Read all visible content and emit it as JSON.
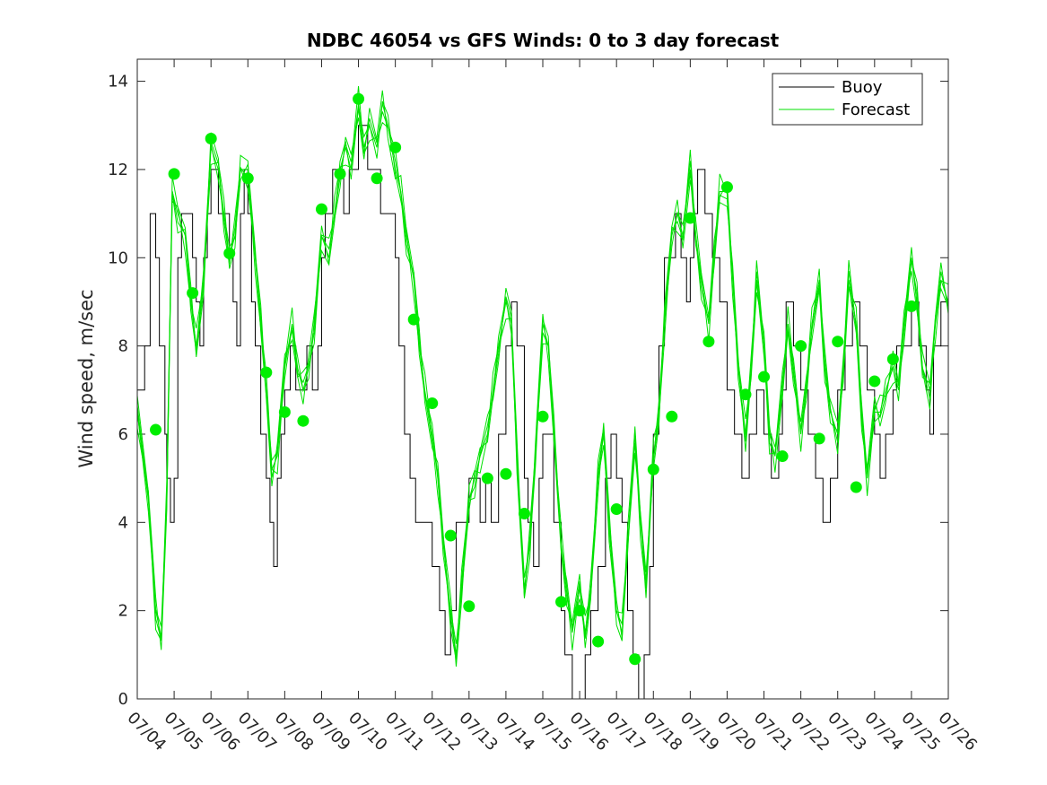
{
  "chart_data": {
    "type": "line",
    "title": "NDBC 46054 vs GFS Winds: 0 to 3 day forecast",
    "xlabel": "",
    "ylabel": "Wind speed, m/sec",
    "xlim": [
      "07/04",
      "07/26"
    ],
    "ylim": [
      0,
      14.5
    ],
    "x_ticks": [
      "07/04",
      "07/05",
      "07/06",
      "07/07",
      "07/08",
      "07/09",
      "07/10",
      "07/11",
      "07/12",
      "07/13",
      "07/14",
      "07/15",
      "07/16",
      "07/17",
      "07/18",
      "07/19",
      "07/20",
      "07/21",
      "07/22",
      "07/23",
      "07/24",
      "07/25",
      "07/26"
    ],
    "y_ticks": [
      "0",
      "2",
      "4",
      "6",
      "8",
      "10",
      "12",
      "14"
    ],
    "grid": false,
    "legend": {
      "position": "top-right",
      "entries": [
        {
          "label": "Buoy",
          "color": "#000000"
        },
        {
          "label": "Forecast",
          "color": "#00e000"
        }
      ]
    },
    "colors": {
      "buoy": "#000000",
      "forecast": "#00e000",
      "marker": "#00ee00"
    },
    "series": [
      {
        "name": "Buoy",
        "x": [
          0,
          0.2,
          0.35,
          0.5,
          0.6,
          0.75,
          0.8,
          0.9,
          1.0,
          1.1,
          1.2,
          1.35,
          1.5,
          1.6,
          1.7,
          1.8,
          1.9,
          2.0,
          2.1,
          2.2,
          2.35,
          2.5,
          2.6,
          2.7,
          2.8,
          2.9,
          3.0,
          3.1,
          3.2,
          3.35,
          3.5,
          3.6,
          3.7,
          3.8,
          3.9,
          4.0,
          4.15,
          4.3,
          4.45,
          4.6,
          4.75,
          4.9,
          5.0,
          5.1,
          5.3,
          5.5,
          5.6,
          5.75,
          5.9,
          6.0,
          6.1,
          6.25,
          6.4,
          6.6,
          6.75,
          6.9,
          7.0,
          7.1,
          7.25,
          7.4,
          7.55,
          7.7,
          7.9,
          8.0,
          8.2,
          8.35,
          8.5,
          8.65,
          8.8,
          9.0,
          9.15,
          9.3,
          9.45,
          9.6,
          9.8,
          10.0,
          10.15,
          10.3,
          10.5,
          10.6,
          10.75,
          10.9,
          11.0,
          11.15,
          11.3,
          11.5,
          11.6,
          11.8,
          12.0,
          12.15,
          12.3,
          12.5,
          12.6,
          12.7,
          12.85,
          13.0,
          13.15,
          13.3,
          13.45,
          13.6,
          13.75,
          13.9,
          14.0,
          14.15,
          14.3,
          14.5,
          14.6,
          14.75,
          14.9,
          15.0,
          15.1,
          15.2,
          15.4,
          15.6,
          15.8,
          16.0,
          16.2,
          16.4,
          16.6,
          16.8,
          17.0,
          17.2,
          17.4,
          17.5,
          17.6,
          17.8,
          18.0,
          18.2,
          18.4,
          18.5,
          18.6,
          18.8,
          19.0,
          19.2,
          19.4,
          19.5,
          19.6,
          19.8,
          20.0,
          20.15,
          20.3,
          20.5,
          20.6,
          20.8,
          21.0,
          21.2,
          21.4,
          21.5,
          21.6,
          21.8,
          22.0
        ],
        "y": [
          7,
          8,
          11,
          10,
          8,
          6,
          5,
          4,
          5,
          10,
          11,
          11,
          10,
          9,
          8,
          10,
          11,
          12,
          12,
          11,
          11,
          10,
          9,
          8,
          11,
          12,
          11,
          9,
          8,
          6,
          5,
          4,
          3,
          5,
          6,
          7,
          8,
          7,
          7,
          8,
          7,
          8,
          10,
          11,
          12,
          12,
          11,
          12,
          12,
          13,
          13,
          12,
          12,
          11,
          11,
          11,
          10,
          8,
          6,
          5,
          4,
          4,
          4,
          3,
          2,
          1,
          2,
          4,
          4,
          5,
          5,
          4,
          5,
          4,
          6,
          8,
          9,
          8,
          5,
          4,
          3,
          5,
          6,
          6,
          4,
          2,
          1,
          0,
          0,
          1,
          2,
          3,
          3,
          5,
          6,
          5,
          4,
          2,
          1,
          0,
          1,
          3,
          6,
          8,
          10,
          10,
          11,
          10,
          9,
          10,
          11,
          12,
          11,
          10,
          9,
          7,
          6,
          5,
          6,
          7,
          6,
          5,
          6,
          7,
          9,
          8,
          7,
          6,
          5,
          5,
          4,
          5,
          7,
          8,
          9,
          9,
          8,
          7,
          6,
          5,
          6,
          7,
          8,
          8,
          9,
          8,
          7,
          6,
          8,
          9,
          8
        ]
      },
      {
        "name": "Forecast",
        "x": [
          0,
          0.3,
          0.5,
          0.65,
          0.8,
          0.95,
          1.1,
          1.3,
          1.45,
          1.6,
          1.8,
          2.0,
          2.2,
          2.35,
          2.5,
          2.65,
          2.8,
          3.0,
          3.2,
          3.35,
          3.5,
          3.65,
          3.8,
          4.0,
          4.2,
          4.35,
          4.5,
          4.65,
          4.8,
          5.0,
          5.2,
          5.35,
          5.5,
          5.65,
          5.8,
          6.0,
          6.15,
          6.3,
          6.5,
          6.65,
          6.8,
          7.0,
          7.15,
          7.3,
          7.5,
          7.65,
          7.8,
          8.0,
          8.15,
          8.3,
          8.5,
          8.65,
          8.8,
          9.0,
          9.15,
          9.3,
          9.5,
          9.65,
          9.8,
          10.0,
          10.15,
          10.3,
          10.5,
          10.65,
          10.8,
          11.0,
          11.15,
          11.3,
          11.5,
          11.65,
          11.8,
          12.0,
          12.15,
          12.3,
          12.5,
          12.65,
          12.8,
          13.0,
          13.15,
          13.3,
          13.5,
          13.65,
          13.8,
          14.0,
          14.15,
          14.3,
          14.5,
          14.65,
          14.8,
          15.0,
          15.15,
          15.3,
          15.5,
          15.65,
          15.8,
          16.0,
          16.15,
          16.3,
          16.5,
          16.65,
          16.8,
          17.0,
          17.15,
          17.3,
          17.5,
          17.65,
          17.8,
          18.0,
          18.15,
          18.3,
          18.5,
          18.65,
          18.8,
          19.0,
          19.15,
          19.3,
          19.5,
          19.65,
          19.8,
          20.0,
          20.15,
          20.3,
          20.5,
          20.65,
          20.8,
          21.0,
          21.15,
          21.3,
          21.5,
          21.65,
          21.8,
          22.0
        ],
        "y": [
          6.5,
          4.5,
          2.0,
          1.4,
          4.5,
          11.5,
          11.0,
          10.5,
          9.0,
          8.0,
          9.5,
          12.5,
          12.0,
          11.0,
          10.0,
          10.5,
          12.0,
          12.0,
          10.0,
          8.5,
          7.0,
          5.2,
          5.5,
          7.5,
          8.5,
          7.5,
          7.0,
          7.5,
          8.5,
          10.5,
          10.0,
          11.0,
          12.0,
          12.5,
          12.0,
          13.5,
          12.5,
          13.0,
          12.5,
          13.5,
          13.0,
          12.0,
          11.5,
          10.5,
          9.5,
          8.0,
          7.0,
          6.0,
          5.0,
          3.5,
          2.0,
          1.0,
          2.5,
          4.5,
          5.0,
          5.5,
          6.0,
          7.0,
          8.0,
          9.0,
          8.5,
          5.5,
          2.5,
          3.5,
          5.5,
          8.5,
          8.0,
          6.0,
          3.5,
          2.5,
          1.5,
          2.5,
          1.5,
          2.5,
          5.0,
          6.0,
          4.0,
          2.0,
          1.5,
          3.5,
          6.0,
          4.0,
          2.5,
          5.5,
          6.5,
          8.5,
          10.5,
          11.0,
          10.5,
          12.0,
          10.5,
          9.5,
          8.5,
          10.0,
          11.5,
          11.5,
          9.5,
          7.5,
          6.0,
          7.5,
          9.5,
          8.0,
          6.0,
          5.5,
          7.0,
          8.5,
          7.5,
          6.0,
          7.0,
          8.5,
          9.5,
          7.5,
          6.5,
          6.0,
          7.5,
          9.5,
          8.5,
          6.5,
          5.0,
          6.5,
          6.5,
          7.0,
          7.5,
          7.0,
          8.5,
          10.0,
          9.0,
          7.5,
          7.0,
          8.5,
          9.5,
          9.0
        ]
      },
      {
        "name": "Forecast markers",
        "x": [
          0.5,
          1.0,
          1.5,
          2.0,
          2.5,
          3.0,
          3.5,
          4.0,
          4.5,
          5.0,
          5.5,
          6.0,
          6.5,
          7.0,
          7.5,
          8.0,
          8.5,
          9.0,
          9.5,
          10.0,
          10.5,
          11.0,
          11.5,
          12.0,
          12.5,
          13.0,
          13.5,
          14.0,
          14.5,
          15.0,
          15.5,
          16.0,
          16.5,
          17.0,
          17.5,
          18.0,
          18.5,
          19.0,
          19.5,
          20.0,
          20.5,
          21.0
        ],
        "y": [
          6.1,
          11.9,
          9.2,
          12.7,
          10.1,
          11.8,
          7.4,
          6.5,
          6.3,
          11.1,
          11.9,
          13.6,
          11.8,
          12.5,
          8.6,
          6.7,
          3.7,
          2.1,
          5.0,
          5.1,
          4.2,
          6.4,
          2.2,
          2.0,
          1.3,
          4.3,
          0.9,
          5.2,
          6.4,
          10.9,
          8.1,
          11.6,
          6.9,
          7.3,
          5.5,
          8.0,
          5.9,
          8.1,
          4.8,
          7.2,
          7.7,
          8.9
        ]
      }
    ]
  }
}
